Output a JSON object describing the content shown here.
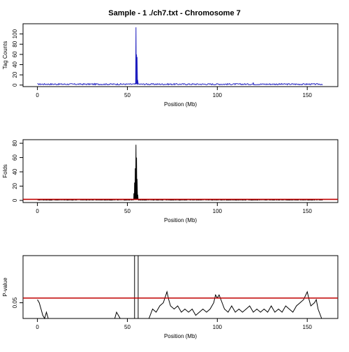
{
  "chart_data": {
    "title": "Sample - 1 ./ch7.txt - Chromosome 7",
    "panels": [
      {
        "type": "line",
        "ylabel": "Tag Counts",
        "xlabel": "Position (Mb)",
        "xlim": [
          -8,
          167
        ],
        "ylim": [
          -3,
          120
        ],
        "xticks": [
          0,
          50,
          100,
          150
        ],
        "yticks": [
          0,
          20,
          40,
          60,
          80,
          100
        ],
        "line_color": "#1f1fbf",
        "baseline": 0.5,
        "noise": 2.5,
        "spikes": [
          [
            54.8,
            113
          ],
          [
            55.1,
            60
          ],
          [
            55.4,
            55
          ],
          [
            55.7,
            10
          ],
          [
            120,
            5
          ]
        ],
        "x_end": 158.8
      },
      {
        "type": "line",
        "ylabel": "Folds",
        "xlabel": "Position (Mb)",
        "xlim": [
          -8,
          167
        ],
        "ylim": [
          -3,
          85
        ],
        "xticks": [
          0,
          50,
          100,
          150
        ],
        "yticks": [
          0,
          20,
          40,
          60,
          80
        ],
        "line_color": "#000000",
        "threshold": 1.5,
        "threshold_color": "#c00000",
        "baseline": 0.3,
        "noise": 0.8,
        "spikes": [
          [
            53.6,
            10
          ],
          [
            54.0,
            25
          ],
          [
            54.4,
            45
          ],
          [
            54.8,
            78
          ],
          [
            55.1,
            60
          ],
          [
            55.4,
            30
          ],
          [
            55.8,
            8
          ]
        ],
        "x_end": 158.8
      },
      {
        "type": "line",
        "ylabel": "P-value",
        "xlabel": "Position (Mb)",
        "xlim": [
          -8,
          167
        ],
        "ylim": [
          0.0,
          0.2
        ],
        "xticks": [
          0,
          50,
          100,
          150
        ],
        "yticks": [
          0.05
        ],
        "line_color": "#000000",
        "threshold": 0.065,
        "threshold_color": "#c00000",
        "peak_lines": [
          54.0,
          56.0
        ],
        "segments": [
          [
            [
              0,
              0.06
            ],
            [
              1,
              0.05
            ],
            [
              2,
              0.03
            ],
            [
              3,
              0.01
            ],
            [
              4,
              0.0
            ],
            [
              5,
              0.02
            ],
            [
              6,
              0.0
            ]
          ],
          [
            [
              43,
              0.0
            ],
            [
              44,
              0.02
            ],
            [
              45,
              0.01
            ],
            [
              46,
              0.0
            ]
          ],
          [
            [
              62,
              0.0
            ],
            [
              64,
              0.03
            ],
            [
              66,
              0.02
            ],
            [
              68,
              0.04
            ],
            [
              70,
              0.05
            ],
            [
              72,
              0.085
            ],
            [
              73,
              0.06
            ],
            [
              74,
              0.04
            ],
            [
              76,
              0.03
            ],
            [
              78,
              0.04
            ],
            [
              80,
              0.02
            ],
            [
              82,
              0.03
            ],
            [
              84,
              0.02
            ],
            [
              86,
              0.03
            ],
            [
              88,
              0.01
            ],
            [
              90,
              0.02
            ],
            [
              92,
              0.03
            ],
            [
              94,
              0.02
            ],
            [
              96,
              0.03
            ],
            [
              98,
              0.05
            ],
            [
              99,
              0.075
            ],
            [
              100,
              0.065
            ],
            [
              101,
              0.075
            ],
            [
              102,
              0.06
            ],
            [
              104,
              0.03
            ],
            [
              106,
              0.02
            ],
            [
              108,
              0.04
            ],
            [
              110,
              0.02
            ],
            [
              112,
              0.03
            ],
            [
              114,
              0.02
            ],
            [
              116,
              0.03
            ],
            [
              118,
              0.04
            ],
            [
              120,
              0.02
            ],
            [
              122,
              0.03
            ],
            [
              124,
              0.02
            ],
            [
              126,
              0.03
            ],
            [
              128,
              0.02
            ],
            [
              130,
              0.04
            ],
            [
              132,
              0.02
            ],
            [
              134,
              0.03
            ],
            [
              136,
              0.02
            ],
            [
              138,
              0.04
            ],
            [
              140,
              0.03
            ],
            [
              142,
              0.02
            ],
            [
              144,
              0.04
            ],
            [
              146,
              0.05
            ],
            [
              148,
              0.06
            ],
            [
              150,
              0.085
            ],
            [
              151,
              0.06
            ],
            [
              152,
              0.04
            ],
            [
              154,
              0.05
            ],
            [
              155,
              0.06
            ],
            [
              156,
              0.03
            ],
            [
              158,
              0.0
            ]
          ]
        ],
        "x_end": 158.8
      }
    ]
  }
}
